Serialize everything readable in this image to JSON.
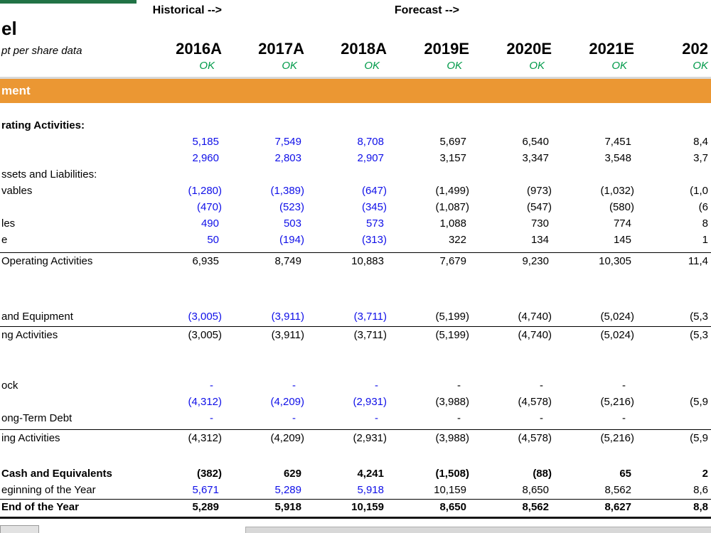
{
  "colors": {
    "brand_bar": "#217346",
    "section_bar": "#EB9733",
    "historical_values": "#0F0FE8",
    "ok_check": "#009A49",
    "divider": "#D9D9D9"
  },
  "header": {
    "historical_arrow": "Historical -->",
    "forecast_arrow": "Forecast -->",
    "title_fragment": "el",
    "units_note_fragment": "pt per share data",
    "years": [
      "2016A",
      "2017A",
      "2018A",
      "2019E",
      "2020E",
      "2021E",
      "202"
    ],
    "checks": [
      "OK",
      "OK",
      "OK",
      "OK",
      "OK",
      "OK",
      "OK"
    ],
    "section_title_fragment": "ment"
  },
  "statement": {
    "rows": [
      {
        "type": "section",
        "label": "rating Activities:",
        "margin_top": 20
      },
      {
        "type": "data",
        "label": "",
        "values": [
          "5,185",
          "7,549",
          "8,708",
          "5,697",
          "6,540",
          "7,451",
          "8,4"
        ]
      },
      {
        "type": "data",
        "label": "",
        "values": [
          "2,960",
          "2,803",
          "2,907",
          "3,157",
          "3,347",
          "3,548",
          "3,7"
        ]
      },
      {
        "type": "section2",
        "label": "ssets and Liabilities:"
      },
      {
        "type": "data",
        "label": "vables",
        "values": [
          "(1,280)",
          "(1,389)",
          "(647)",
          "(1,499)",
          "(973)",
          "(1,032)",
          "(1,0"
        ]
      },
      {
        "type": "data",
        "label": "",
        "values": [
          "(470)",
          "(523)",
          "(345)",
          "(1,087)",
          "(547)",
          "(580)",
          "(6"
        ]
      },
      {
        "type": "data",
        "label": "les",
        "values": [
          "490",
          "503",
          "573",
          "1,088",
          "730",
          "774",
          "8"
        ]
      },
      {
        "type": "data",
        "label": "e",
        "values": [
          "50",
          "(194)",
          "(313)",
          "322",
          "134",
          "145",
          "1"
        ]
      },
      {
        "type": "total",
        "label": "Operating Activities",
        "margin_top": 6,
        "values": [
          "6,935",
          "8,749",
          "10,883",
          "7,679",
          "9,230",
          "10,305",
          "11,4"
        ]
      },
      {
        "type": "spacer",
        "height": 54
      },
      {
        "type": "data",
        "label": "and Equipment",
        "values": [
          "(3,005)",
          "(3,911)",
          "(3,711)",
          "(5,199)",
          "(4,740)",
          "(5,024)",
          "(5,3"
        ]
      },
      {
        "type": "total",
        "label": "ng Activities",
        "margin_top": 2,
        "values": [
          "(3,005)",
          "(3,911)",
          "(3,711)",
          "(5,199)",
          "(4,740)",
          "(5,024)",
          "(5,3"
        ]
      },
      {
        "type": "spacer",
        "height": 47
      },
      {
        "type": "data",
        "label": "ock",
        "values": [
          "-",
          "-",
          "-",
          "-",
          "-",
          "-",
          ""
        ]
      },
      {
        "type": "data",
        "label": "",
        "values": [
          "(4,312)",
          "(4,209)",
          "(2,931)",
          "(3,988)",
          "(4,578)",
          "(5,216)",
          "(5,9"
        ]
      },
      {
        "type": "data",
        "label": "ong-Term Debt",
        "values": [
          "-",
          "-",
          "-",
          "-",
          "-",
          "-",
          ""
        ]
      },
      {
        "type": "total",
        "label": "ing Activities",
        "margin_top": 4,
        "values": [
          "(4,312)",
          "(4,209)",
          "(2,931)",
          "(3,988)",
          "(4,578)",
          "(5,216)",
          "(5,9"
        ]
      },
      {
        "type": "spacer",
        "height": 26
      },
      {
        "type": "databold",
        "label": "Cash and Equivalents",
        "values": [
          "(382)",
          "629",
          "4,241",
          "(1,508)",
          "(88)",
          "65",
          "2"
        ]
      },
      {
        "type": "data",
        "label": "eginning of the Year",
        "values": [
          "5,671",
          "5,289",
          "5,918",
          "10,159",
          "8,650",
          "8,562",
          "8,6"
        ]
      },
      {
        "type": "grandtotal",
        "label": "End of the Year",
        "margin_top": 1,
        "values": [
          "5,289",
          "5,918",
          "10,159",
          "8,650",
          "8,562",
          "8,627",
          "8,8"
        ]
      }
    ]
  },
  "footer": {
    "buttons": [
      "",
      ""
    ]
  }
}
